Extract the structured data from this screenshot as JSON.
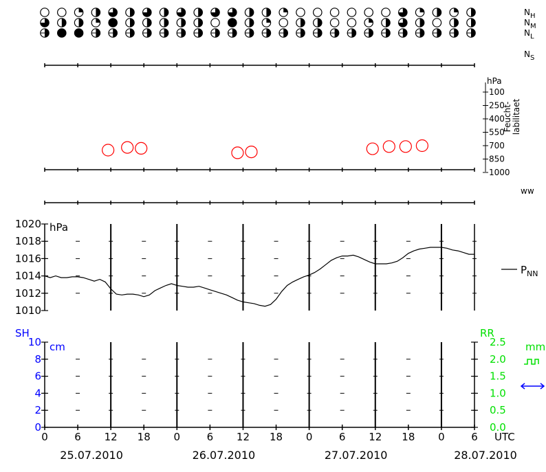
{
  "chart_data": {
    "type": "line",
    "panels": {
      "cloud_cover": {
        "row_labels": [
          "N_H",
          "N_M",
          "N_L"
        ],
        "right_labels": {
          "nh": {
            "base": "N",
            "sub": "H"
          },
          "nm": {
            "base": "N",
            "sub": "M"
          },
          "nl": {
            "base": "N",
            "sub": "L"
          },
          "ns": {
            "base": "N",
            "sub": "S"
          }
        },
        "symbol_encoding": "eighths of sky covered (0-8)",
        "rows": [
          [
            0,
            0,
            2,
            4,
            6,
            4,
            6,
            4,
            6,
            4,
            6,
            6,
            4,
            4,
            2,
            0,
            0,
            0,
            0,
            0,
            0,
            6,
            2,
            4,
            2,
            4
          ],
          [
            6,
            4,
            4,
            2,
            8,
            4,
            4,
            4,
            4,
            4,
            0,
            8,
            4,
            2,
            0,
            4,
            4,
            0,
            0,
            2,
            4,
            6,
            4,
            0,
            4,
            4
          ],
          [
            4,
            8,
            8,
            4,
            4,
            4,
            4,
            4,
            4,
            4,
            4,
            4,
            4,
            4,
            4,
            4,
            4,
            4,
            4,
            4,
            4,
            4,
            4,
            4,
            4,
            4
          ]
        ]
      },
      "humidity": {
        "unit": "hPa",
        "levels": [
          "100",
          "250",
          "400",
          "550",
          "700",
          "850",
          "1000"
        ],
        "side_label_lines": [
          "Feucht-",
          "labilitaet"
        ],
        "ellipses_hour_pressure": [
          {
            "hour": 11.5,
            "hpa": 750
          },
          {
            "hour": 15.0,
            "hpa": 720
          },
          {
            "hour": 17.5,
            "hpa": 730
          },
          {
            "hour": 35.0,
            "hpa": 780
          },
          {
            "hour": 37.5,
            "hpa": 770
          },
          {
            "hour": 59.5,
            "hpa": 735
          },
          {
            "hour": 62.5,
            "hpa": 710
          },
          {
            "hour": 65.5,
            "hpa": 710
          },
          {
            "hour": 68.5,
            "hpa": 700
          }
        ],
        "line_color": "#ff0000"
      },
      "weather": {
        "label": "ww"
      },
      "pressure": {
        "unit": "hPa",
        "ylim": [
          1010,
          1020
        ],
        "yticks": [
          "1010",
          "1012",
          "1014",
          "1016",
          "1018",
          "1020"
        ],
        "series": [
          {
            "name": "PNN",
            "legend": {
              "base": "P",
              "sub": "NN"
            },
            "x_hours": [
              0,
              1,
              2,
              3,
              4,
              5,
              6,
              7,
              8,
              9,
              10,
              11,
              12,
              13,
              14,
              15,
              16,
              17,
              18,
              19,
              20,
              21,
              22,
              23,
              24,
              25,
              26,
              27,
              28,
              29,
              30,
              31,
              32,
              33,
              34,
              35,
              36,
              37,
              38,
              39,
              40,
              41,
              42,
              43,
              44,
              45,
              46,
              47,
              48,
              49,
              50,
              51,
              52,
              53,
              54,
              55,
              56,
              57,
              58,
              59,
              60,
              61,
              62,
              63,
              64,
              65,
              66,
              67,
              68,
              69,
              70,
              71,
              72,
              73,
              74,
              75,
              76,
              77,
              78
            ],
            "values": [
              1014.0,
              1013.8,
              1014.0,
              1013.8,
              1013.8,
              1013.9,
              1013.9,
              1013.8,
              1013.6,
              1013.4,
              1013.6,
              1013.3,
              1012.5,
              1011.9,
              1011.8,
              1011.9,
              1011.9,
              1011.8,
              1011.6,
              1011.8,
              1012.3,
              1012.6,
              1012.9,
              1013.1,
              1012.9,
              1012.8,
              1012.7,
              1012.7,
              1012.8,
              1012.6,
              1012.4,
              1012.2,
              1012.0,
              1011.8,
              1011.5,
              1011.2,
              1011.0,
              1010.9,
              1010.8,
              1010.6,
              1010.5,
              1010.7,
              1011.3,
              1012.2,
              1012.9,
              1013.3,
              1013.6,
              1013.9,
              1014.1,
              1014.4,
              1014.8,
              1015.3,
              1015.8,
              1016.1,
              1016.3,
              1016.3,
              1016.4,
              1016.2,
              1015.9,
              1015.6,
              1015.4,
              1015.4,
              1015.4,
              1015.5,
              1015.7,
              1016.1,
              1016.6,
              1016.9,
              1017.1,
              1017.2,
              1017.3,
              1017.3,
              1017.3,
              1017.2,
              1017.0,
              1016.9,
              1016.7,
              1016.5,
              1016.5
            ]
          }
        ]
      },
      "snow_rain": {
        "left_title": "SH",
        "left_unit": "cm",
        "left_ylim": [
          0,
          10
        ],
        "left_ticks": [
          "0",
          "2",
          "4",
          "6",
          "8",
          "10"
        ],
        "right_title": "RR",
        "right_unit": "mm",
        "right_ylim": [
          0.0,
          2.5
        ],
        "right_ticks": [
          "0.0",
          "0.5",
          "1.0",
          "1.5",
          "2.0",
          "2.5"
        ],
        "left_color": "#0000ff",
        "right_color": "#00e000",
        "snow_values": [],
        "rain_values": []
      }
    },
    "x_axis": {
      "unit": "UTC",
      "tick_hours": [
        0,
        6,
        12,
        18,
        24,
        30,
        36,
        42,
        48,
        54,
        60,
        66,
        72,
        78
      ],
      "tick_labels": [
        "0",
        "6",
        "12",
        "18",
        "0",
        "6",
        "12",
        "18",
        "0",
        "6",
        "12",
        "18",
        "0",
        "6"
      ],
      "dates": [
        "25.07.2010",
        "26.07.2010",
        "27.07.2010",
        "28.07.2010"
      ],
      "date_hours": [
        6,
        30,
        54,
        78
      ]
    }
  }
}
